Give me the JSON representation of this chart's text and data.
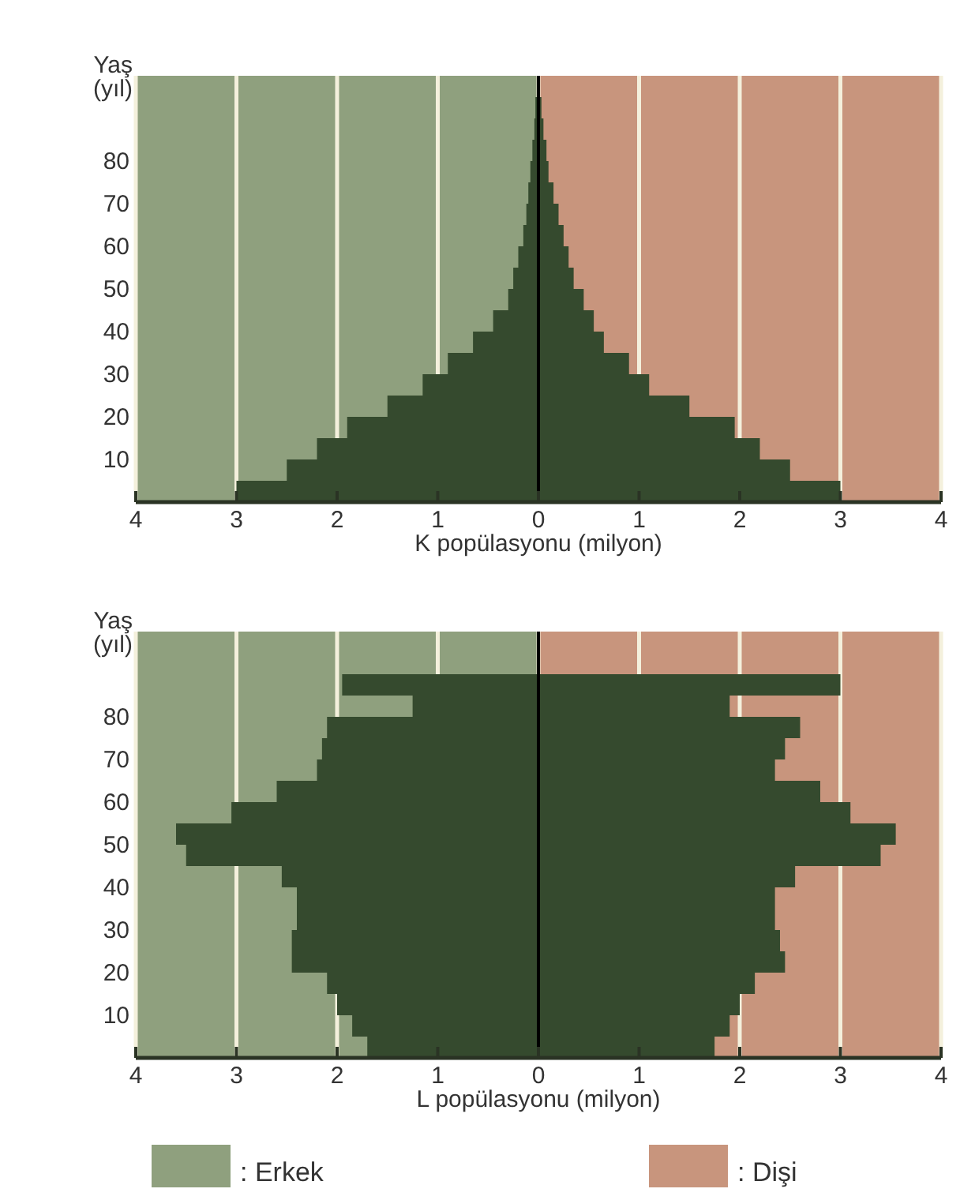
{
  "chart_data": [
    {
      "type": "bar",
      "orientation": "horizontal",
      "xlabel": "K popülasyonu (milyon)",
      "ylabel": "Yaş (yıl)",
      "xlim": [
        -4,
        4
      ],
      "xticks": [
        {
          "value": -4,
          "label": "4"
        },
        {
          "value": -3,
          "label": "3"
        },
        {
          "value": -2,
          "label": "2"
        },
        {
          "value": -1,
          "label": "1"
        },
        0,
        1,
        2,
        3,
        4
      ],
      "ylim": [
        0,
        100
      ],
      "yticks": [
        10,
        20,
        30,
        40,
        50,
        60,
        70,
        80
      ],
      "grid": "x",
      "stacked": true,
      "x": [
        2.5,
        7.5,
        12.5,
        17.5,
        22.5,
        27.5,
        32.5,
        37.5,
        42.5,
        47.5,
        52.5,
        57.5,
        62.5,
        67.5,
        72.5,
        77.5,
        82.5,
        87.5,
        92.5
      ],
      "bands": [
        {
          "axis": "x",
          "from": -4,
          "to": 0,
          "color": "#8fa07e"
        },
        {
          "axis": "x",
          "from": 0,
          "to": 4,
          "color": "#c8957d"
        }
      ],
      "ref_lines": [
        {
          "axis": "x",
          "value": 0,
          "color": "#000000"
        }
      ],
      "series": [
        {
          "color": "#354a2e",
          "values": [
            -3.0,
            -2.5,
            -2.2,
            -1.9,
            -1.5,
            -1.15,
            -0.9,
            -0.65,
            -0.45,
            -0.3,
            -0.25,
            -0.2,
            -0.15,
            -0.12,
            -0.1,
            -0.08,
            -0.06,
            -0.04,
            -0.03
          ]
        },
        {
          "color": "#354a2e",
          "values": [
            3.0,
            2.5,
            2.2,
            1.95,
            1.5,
            1.1,
            0.9,
            0.65,
            0.55,
            0.45,
            0.35,
            0.3,
            0.25,
            0.2,
            0.15,
            0.1,
            0.08,
            0.05,
            0.03
          ]
        }
      ]
    },
    {
      "type": "bar",
      "orientation": "horizontal",
      "xlabel": "L popülasyonu (milyon)",
      "ylabel": "Yaş (yıl)",
      "xlim": [
        -4,
        4
      ],
      "xticks": [
        {
          "value": -4,
          "label": "4"
        },
        {
          "value": -3,
          "label": "3"
        },
        {
          "value": -2,
          "label": "2"
        },
        {
          "value": -1,
          "label": "1"
        },
        0,
        1,
        2,
        3,
        4
      ],
      "ylim": [
        0,
        100
      ],
      "yticks": [
        10,
        20,
        30,
        40,
        50,
        60,
        70,
        80
      ],
      "grid": "x",
      "stacked": true,
      "legend": "bottom",
      "x": [
        2.5,
        7.5,
        12.5,
        17.5,
        22.5,
        27.5,
        32.5,
        37.5,
        42.5,
        47.5,
        52.5,
        57.5,
        62.5,
        67.5,
        72.5,
        77.5,
        82.5,
        87.5
      ],
      "bands": [
        {
          "axis": "x",
          "from": -4,
          "to": 0,
          "color": "#8fa07e",
          "label": ": Erkek"
        },
        {
          "axis": "x",
          "from": 0,
          "to": 4,
          "color": "#c8957d",
          "label": ": Dişi"
        }
      ],
      "ref_lines": [
        {
          "axis": "x",
          "value": 0,
          "color": "#000000"
        }
      ],
      "series": [
        {
          "color": "#354a2e",
          "values": [
            -1.7,
            -1.85,
            -2.0,
            -2.1,
            -2.45,
            -2.45,
            -2.4,
            -2.4,
            -2.55,
            -3.5,
            -3.6,
            -3.05,
            -2.6,
            -2.2,
            -2.15,
            -2.1,
            -1.25,
            -1.95
          ]
        },
        {
          "color": "#354a2e",
          "values": [
            1.75,
            1.9,
            2.0,
            2.15,
            2.45,
            2.4,
            2.35,
            2.35,
            2.55,
            3.4,
            3.55,
            3.1,
            2.8,
            2.35,
            2.45,
            2.6,
            1.9,
            3.0
          ]
        }
      ]
    }
  ]
}
